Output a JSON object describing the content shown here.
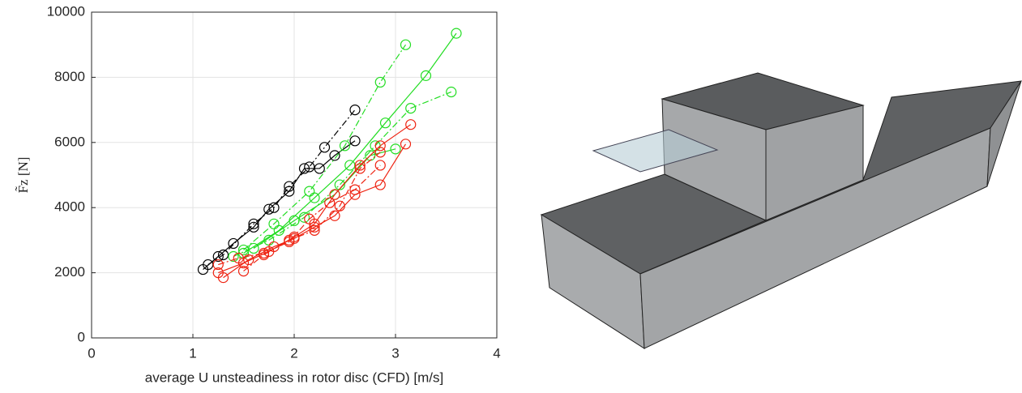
{
  "chart_data": {
    "type": "line",
    "xlabel": "average U unsteadiness in rotor disc (CFD) [m/s]",
    "ylabel": "F̃z [N]",
    "xlim": [
      0,
      4
    ],
    "xticks": [
      0,
      1,
      2,
      3,
      4
    ],
    "ylim": [
      0,
      10000
    ],
    "yticks": [
      0,
      2000,
      4000,
      6000,
      8000,
      10000
    ],
    "grid": true,
    "marker": "circle",
    "series": [
      {
        "color": "#000000",
        "style": "solid",
        "x": [
          1.1,
          1.25,
          1.4,
          1.6,
          1.75,
          1.95,
          2.1,
          2.25,
          2.4,
          2.6
        ],
        "values": [
          2100,
          2500,
          2900,
          3400,
          3950,
          4500,
          5200,
          5200,
          5600,
          6050
        ]
      },
      {
        "color": "#000000",
        "style": "dashdot",
        "x": [
          1.15,
          1.3,
          1.6,
          1.8,
          1.95,
          2.15,
          2.3,
          2.6
        ],
        "values": [
          2250,
          2550,
          3500,
          4000,
          4650,
          5250,
          5850,
          7000
        ]
      },
      {
        "color": "#22dd22",
        "style": "solid",
        "x": [
          1.5,
          1.85,
          2.2,
          2.55,
          2.9,
          3.3,
          3.6
        ],
        "values": [
          2600,
          3300,
          4300,
          5300,
          6600,
          8050,
          9350
        ]
      },
      {
        "color": "#22dd22",
        "style": "dashdot",
        "x": [
          1.5,
          1.8,
          2.15,
          2.5,
          2.85,
          3.1
        ],
        "values": [
          2700,
          3500,
          4500,
          5900,
          7850,
          9000
        ]
      },
      {
        "color": "#22dd22",
        "style": "dashdot",
        "x": [
          1.4,
          1.75,
          2.1,
          2.45,
          2.8,
          3.15,
          3.55
        ],
        "values": [
          2500,
          3000,
          3700,
          4700,
          5900,
          7050,
          7550
        ]
      },
      {
        "color": "#22dd22",
        "style": "solid",
        "x": [
          1.6,
          2.0,
          2.4,
          2.75,
          3.0
        ],
        "values": [
          2750,
          3600,
          4400,
          5600,
          5800
        ]
      },
      {
        "color": "#ee2211",
        "style": "solid",
        "x": [
          1.25,
          1.5,
          1.75,
          2.0,
          2.2,
          2.4,
          2.65,
          2.85,
          3.15
        ],
        "values": [
          2000,
          2300,
          2650,
          3100,
          3500,
          4400,
          5300,
          5900,
          6550
        ]
      },
      {
        "color": "#ee2211",
        "style": "solid",
        "x": [
          1.3,
          1.55,
          1.8,
          2.0,
          2.2,
          2.4,
          2.6,
          2.85,
          3.1
        ],
        "values": [
          1850,
          2400,
          2800,
          3050,
          3400,
          3750,
          4400,
          4700,
          5950
        ]
      },
      {
        "color": "#ee2211",
        "style": "dashdot",
        "x": [
          1.25,
          1.45,
          1.7,
          1.95,
          2.15,
          2.35,
          2.6,
          2.85
        ],
        "values": [
          2250,
          2450,
          2600,
          2950,
          3650,
          4150,
          4550,
          5300
        ]
      },
      {
        "color": "#ee2211",
        "style": "dashdot",
        "x": [
          1.5,
          1.7,
          1.95,
          2.2,
          2.45,
          2.65,
          2.85
        ],
        "values": [
          2050,
          2550,
          3000,
          3300,
          4050,
          5200,
          5700
        ]
      }
    ]
  }
}
